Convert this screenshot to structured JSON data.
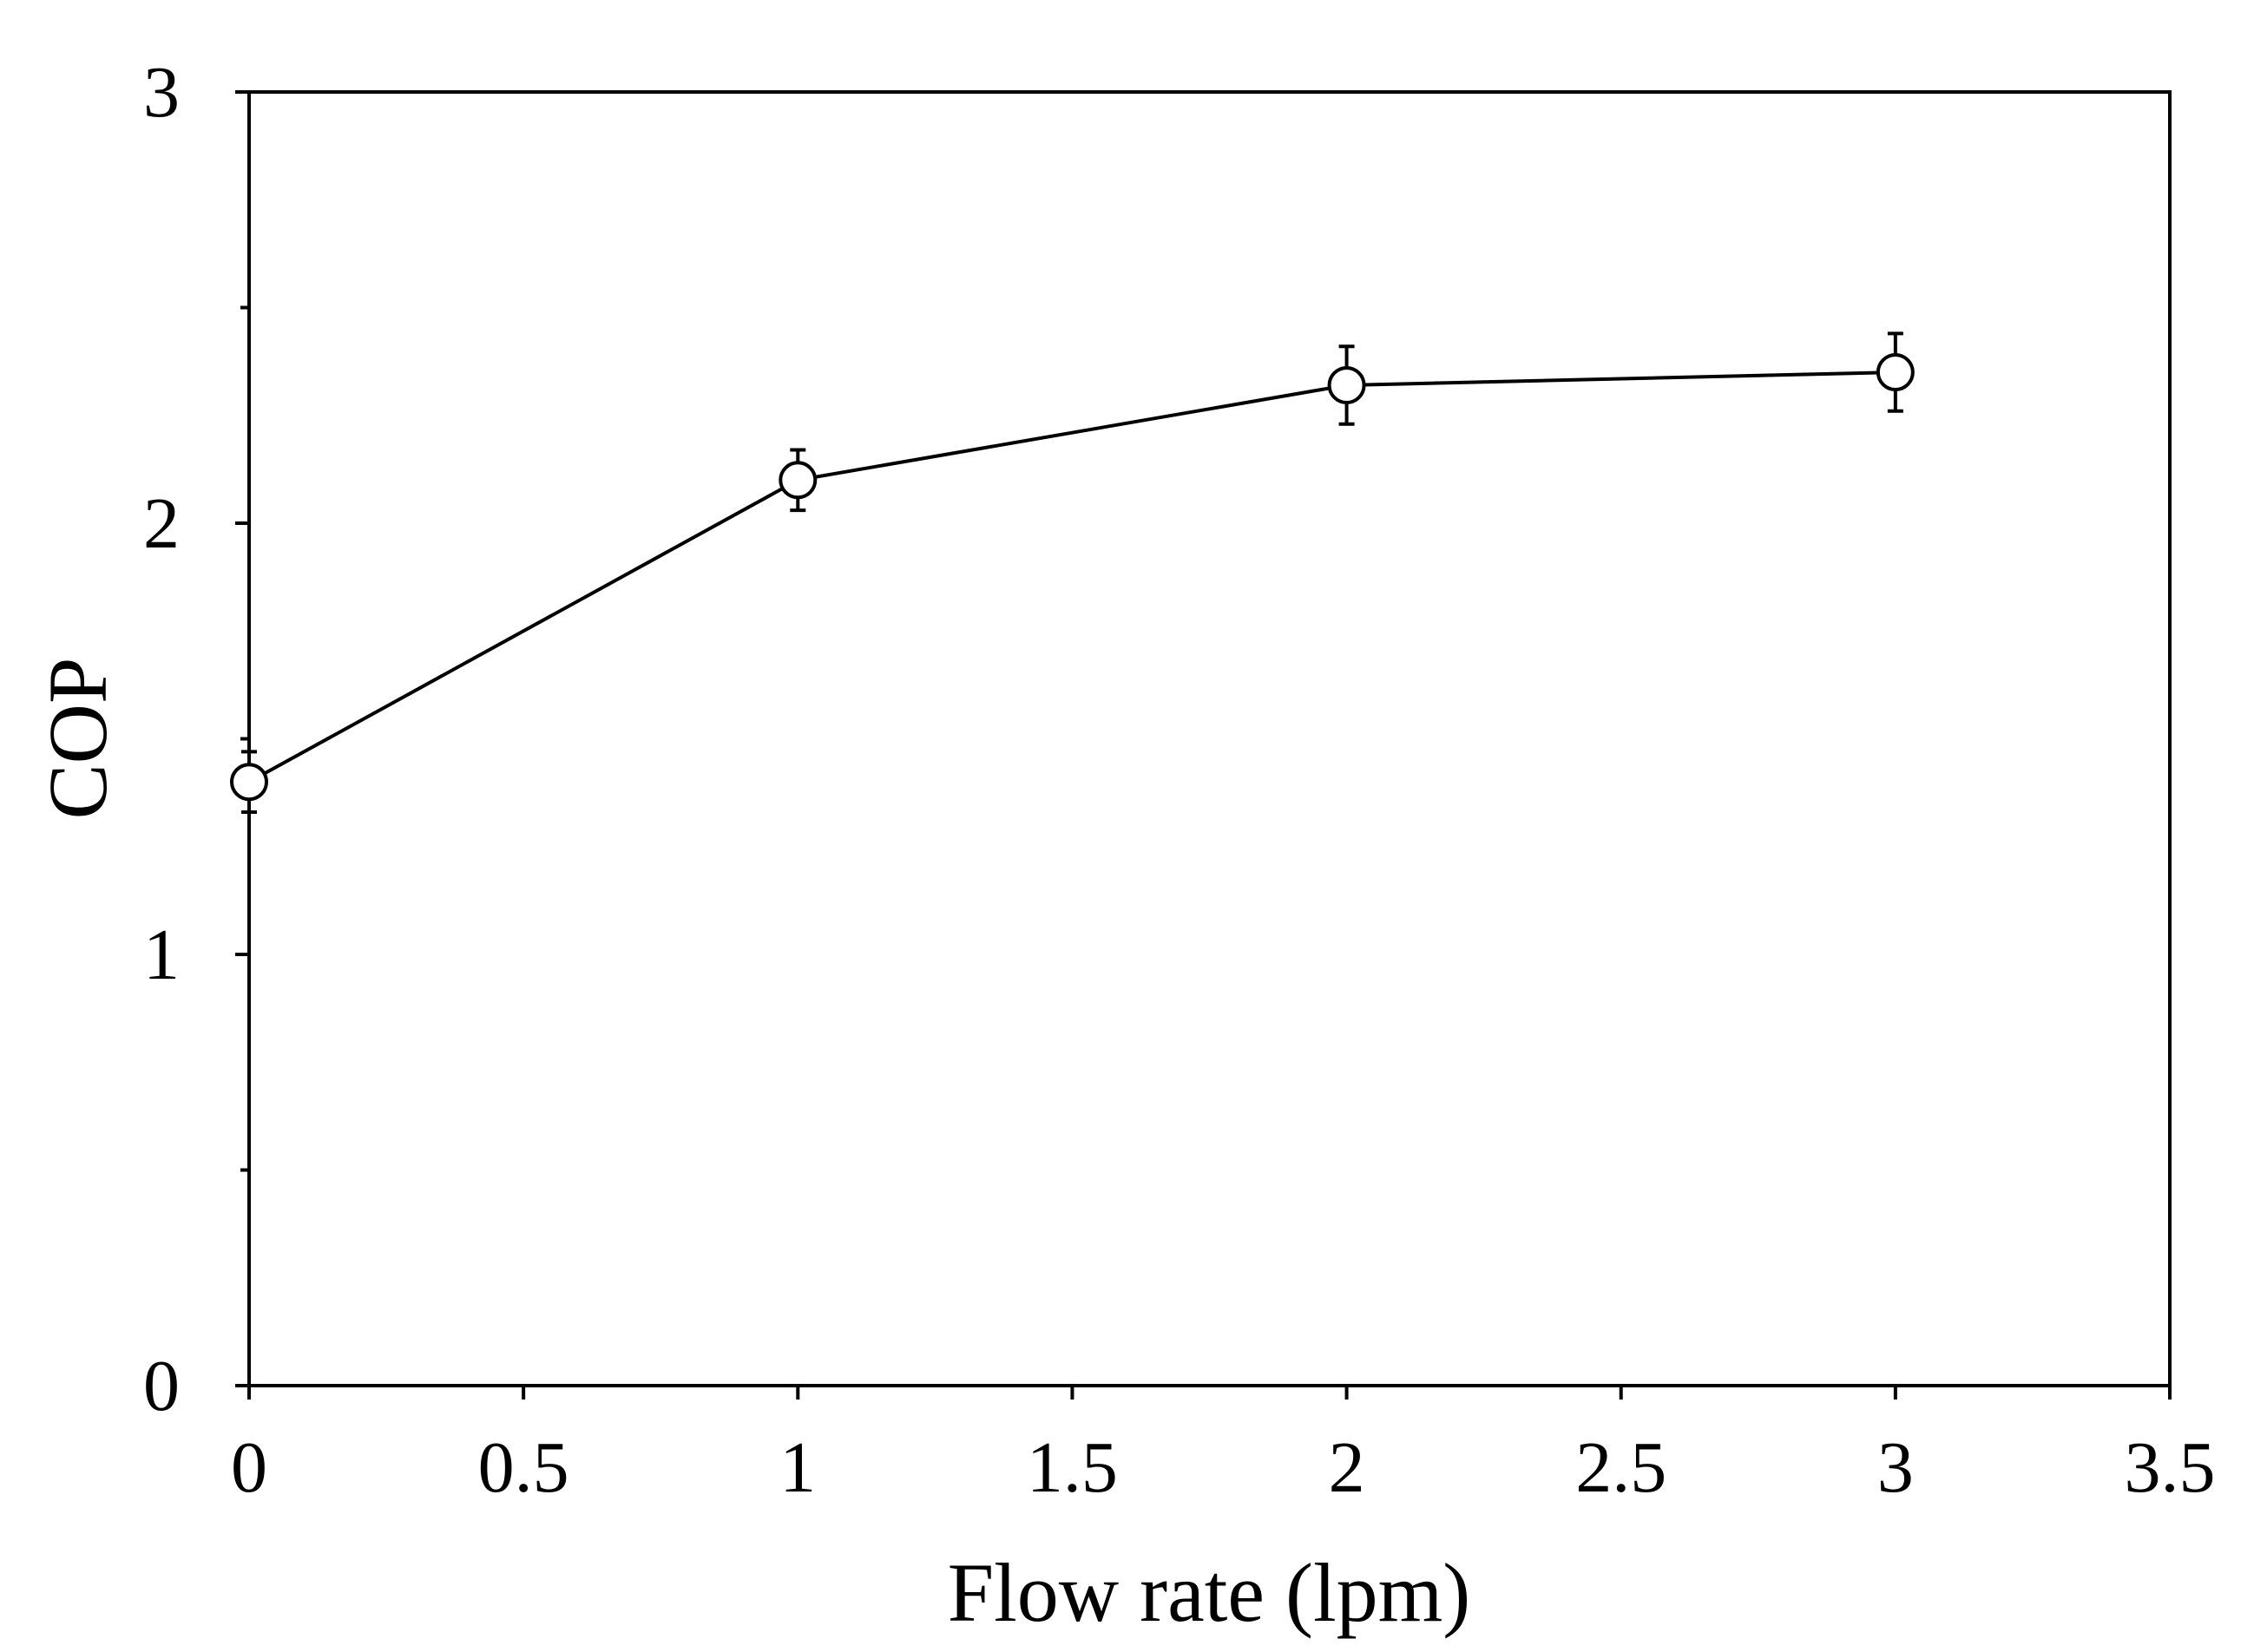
{
  "chart_data": {
    "type": "line",
    "title": "",
    "xlabel": "Flow rate (lpm)",
    "ylabel": "COP",
    "xlim": [
      0,
      3.5
    ],
    "ylim": [
      0,
      3
    ],
    "x_ticks": [
      0,
      0.5,
      1,
      1.5,
      2,
      2.5,
      3,
      3.5
    ],
    "x_tick_labels": [
      "0",
      "0.5",
      "1",
      "1.5",
      "2",
      "2.5",
      "3",
      "3.5"
    ],
    "y_ticks": [
      0,
      1,
      2,
      3
    ],
    "y_tick_labels": [
      "0",
      "1",
      "2",
      "3"
    ],
    "y_minor_ticks": [
      0.5,
      1.5,
      2.5
    ],
    "grid": false,
    "series": [
      {
        "name": "COP",
        "marker": "open-circle",
        "x": [
          0,
          1,
          2,
          3
        ],
        "y": [
          1.4,
          2.1,
          2.32,
          2.35
        ],
        "error": [
          0.07,
          0.07,
          0.09,
          0.09
        ]
      }
    ]
  },
  "colors": {
    "line": "#000000",
    "marker_fill": "#ffffff",
    "background": "#ffffff"
  }
}
